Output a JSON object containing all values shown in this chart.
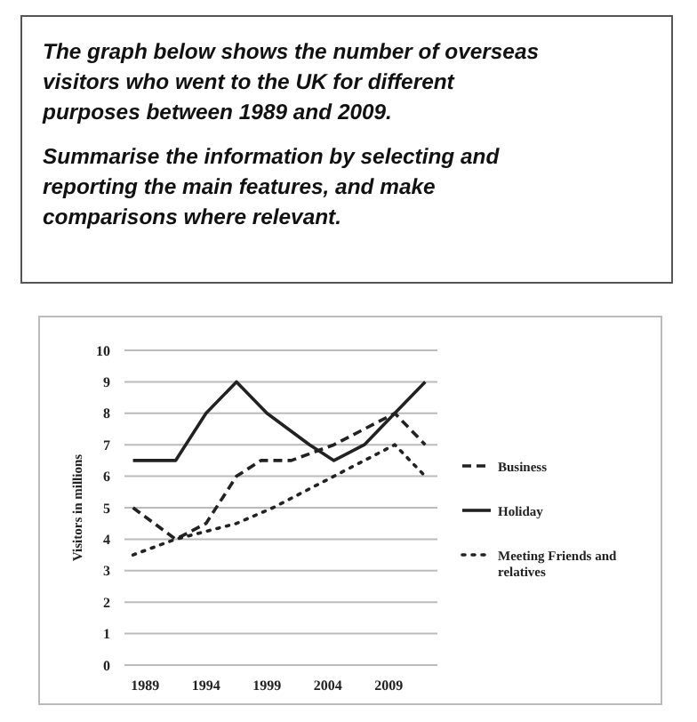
{
  "chart_data": {
    "type": "line",
    "title": "The graph below shows the number of overseas visitors who went to the UK for different purposes between 1989 and 2009.",
    "subtitle": "Summarise the information by selecting and reporting the main features, and make comparisons where relevant.",
    "ylabel": "Visitors in millions",
    "xlim": [
      1987.3,
      2013
    ],
    "xticks": [
      1989,
      1994,
      1999,
      2004,
      2009
    ],
    "ylim": [
      0,
      10
    ],
    "yticks": [
      0,
      1,
      2,
      3,
      4,
      5,
      6,
      7,
      8,
      9,
      10
    ],
    "grid": "y",
    "legend": "right",
    "marker": "none",
    "series": [
      {
        "name": "Business",
        "color": "#222222",
        "line_style": "dashed",
        "x": [
          1988,
          1991.5,
          1994,
          1996.5,
          1998.5,
          2001,
          2004.5,
          2007,
          2009.5,
          2012
        ],
        "values": [
          5,
          4,
          4.5,
          6,
          6.5,
          6.5,
          7,
          7.5,
          8,
          7
        ]
      },
      {
        "name": "Holiday",
        "color": "#222222",
        "line_style": "solid",
        "x": [
          1988,
          1991.5,
          1994,
          1996.5,
          1999,
          2002.5,
          2004.5,
          2007,
          2009.5,
          2012
        ],
        "values": [
          6.5,
          6.5,
          8,
          9,
          8,
          7,
          6.5,
          7,
          8,
          9
        ]
      },
      {
        "name": "Meeting Friends and relatives",
        "color": "#222222",
        "line_style": "dotted",
        "x": [
          1988,
          1991.5,
          1996.5,
          1999.5,
          2004.5,
          2009.5,
          2012
        ],
        "values": [
          3.5,
          4,
          4.5,
          5,
          6,
          7,
          6
        ]
      }
    ]
  }
}
